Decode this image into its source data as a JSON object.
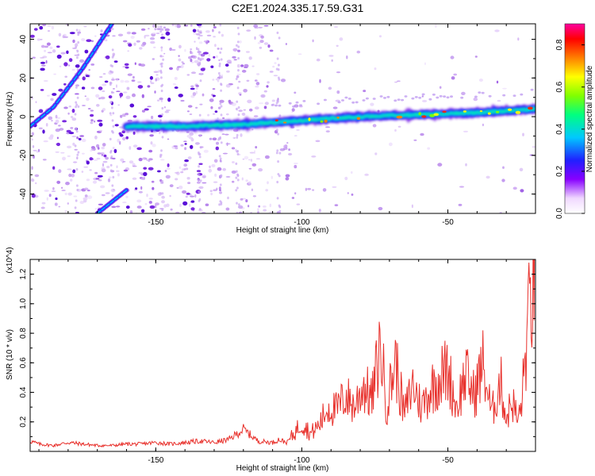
{
  "title": "C2E1.2024.335.17.59.G31",
  "chart_data": [
    {
      "type": "heatmap",
      "xlabel": "Height of straight line (km)",
      "ylabel": "Frequency (Hz)",
      "xlim": [
        -193,
        -20
      ],
      "ylim": [
        -50,
        48
      ],
      "xticks": [
        -150,
        -100,
        -50
      ],
      "yticks": [
        -40,
        -20,
        0,
        20,
        40
      ],
      "colorbar": {
        "label": "Normalized spectral amplitude",
        "range": [
          0,
          0.9
        ],
        "ticks": [
          "0.0",
          "0.2",
          "0.4",
          "0.6",
          "0.8"
        ],
        "tick_values": [
          0,
          0.2,
          0.4,
          0.6,
          0.8
        ]
      },
      "features": [
        {
          "name": "main band",
          "x": [
            -160,
            -140,
            -120,
            -100,
            -80,
            -60,
            -40,
            -20
          ],
          "y": [
            -5,
            -5,
            -4,
            -2,
            0,
            1,
            2,
            4
          ]
        },
        {
          "name": "upper diagonal",
          "x": [
            -193,
            -185,
            -175,
            -165
          ],
          "y": [
            -5,
            5,
            25,
            48
          ]
        },
        {
          "name": "lower diagonal",
          "x": [
            -170,
            -160
          ],
          "y": [
            -50,
            -38
          ]
        }
      ]
    },
    {
      "type": "line",
      "xlabel": "Height of straight line (km)",
      "ylabel": "SNR (10 * v/v)",
      "y_multiplier": "(x10^4)",
      "xlim": [
        -193,
        -20
      ],
      "ylim": [
        0,
        1.3
      ],
      "xticks": [
        -150,
        -100,
        -50
      ],
      "yticks": [
        "0.2",
        "0.4",
        "0.6",
        "0.8",
        "1.0",
        "1.2"
      ],
      "ytick_values": [
        0.2,
        0.4,
        0.6,
        0.8,
        1.0,
        1.2
      ],
      "series": [
        {
          "color": "#e8312c",
          "x": [
            -193,
            -190,
            -185,
            -180,
            -175,
            -170,
            -165,
            -160,
            -155,
            -150,
            -145,
            -140,
            -135,
            -130,
            -125,
            -120,
            -115,
            -110,
            -108,
            -105,
            -102,
            -100,
            -97,
            -94,
            -91,
            -88,
            -85,
            -82,
            -79,
            -76,
            -73,
            -71,
            -68,
            -65,
            -62,
            -59,
            -56,
            -53,
            -50,
            -47,
            -44,
            -41,
            -38,
            -35,
            -32,
            -30,
            -28,
            -26,
            -25,
            -24,
            -23,
            -22,
            -21,
            -20
          ],
          "y": [
            0.07,
            0.05,
            0.04,
            0.06,
            0.05,
            0.04,
            0.04,
            0.05,
            0.05,
            0.06,
            0.05,
            0.06,
            0.07,
            0.06,
            0.08,
            0.15,
            0.07,
            0.06,
            0.08,
            0.06,
            0.14,
            0.2,
            0.12,
            0.18,
            0.3,
            0.28,
            0.38,
            0.3,
            0.45,
            0.35,
            0.73,
            0.3,
            0.62,
            0.25,
            0.45,
            0.3,
            0.42,
            0.5,
            0.55,
            0.3,
            0.52,
            0.38,
            0.59,
            0.25,
            0.48,
            0.22,
            0.35,
            0.2,
            0.3,
            0.5,
            0.75,
            0.95,
            1.1,
            1.3
          ]
        }
      ]
    }
  ]
}
